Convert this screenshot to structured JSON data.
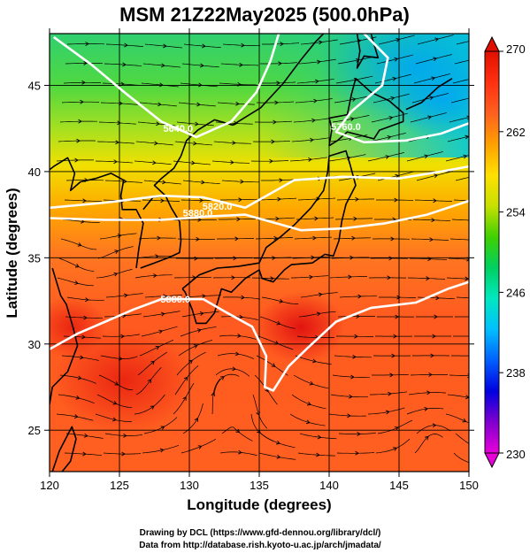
{
  "title": "MSM 21Z22May2025 (500.0hPa)",
  "xlabel": "Longitude (degrees)",
  "ylabel": "Latitude  (degrees)",
  "credits": [
    "Drawing by DCL (https://www.gfd-dennou.org/library/dcl/)",
    "Data from http://database.rish.kyoto-u.ac.jp/arch/jmadata/"
  ],
  "map": {
    "lon_range": [
      120,
      150
    ],
    "lat_range": [
      22.6,
      48
    ],
    "lon_ticks": [
      120,
      125,
      130,
      135,
      140,
      145,
      150
    ],
    "lat_ticks": [
      25,
      30,
      35,
      40,
      45
    ],
    "lon_tick_labels": [
      "120",
      "125",
      "130",
      "135",
      "140",
      "145",
      "150"
    ],
    "lat_tick_labels": [
      "25",
      "30",
      "35",
      "40",
      "45"
    ],
    "grid": true
  },
  "colorbar": {
    "range": [
      230,
      270
    ],
    "tick_values": [
      230,
      238,
      246,
      254,
      262,
      270
    ],
    "tick_labels": [
      "230",
      "238",
      "246",
      "254",
      "262",
      "270"
    ],
    "colors": [
      "#e800d8",
      "#8000d0",
      "#0000e0",
      "#0060ff",
      "#00c0ff",
      "#00e8c0",
      "#00d060",
      "#40d000",
      "#c8e000",
      "#ffe000",
      "#ffa000",
      "#ff6020",
      "#ff3010",
      "#e01000"
    ]
  },
  "contours": [
    {
      "label": "5640.0",
      "label_lon": 129.2,
      "label_lat": 42.3,
      "path": [
        [
          120.3,
          47.8
        ],
        [
          123,
          46.2
        ],
        [
          125.5,
          44.5
        ],
        [
          128,
          42.9
        ],
        [
          130.5,
          42.0
        ],
        [
          133,
          42.9
        ],
        [
          134.8,
          44.6
        ],
        [
          135.8,
          46.4
        ],
        [
          136.4,
          48
        ]
      ]
    },
    {
      "label": "5760.0",
      "label_lon": 141.2,
      "label_lat": 42.4,
      "path": [
        [
          142.5,
          48
        ],
        [
          144.2,
          46.6
        ],
        [
          143.8,
          45.0
        ],
        [
          141.6,
          43.5
        ],
        [
          140.5,
          42.3
        ],
        [
          142.5,
          41.7
        ],
        [
          145.5,
          41.8
        ],
        [
          148,
          42.2
        ],
        [
          150,
          42.8
        ]
      ]
    },
    {
      "label": "5820.0",
      "label_lon": 132.0,
      "label_lat": 37.8,
      "path": [
        [
          120,
          37.9
        ],
        [
          124,
          38.2
        ],
        [
          128,
          38.6
        ],
        [
          131,
          38.5
        ],
        [
          134,
          37.9
        ],
        [
          137.5,
          39.5
        ],
        [
          141,
          39.7
        ],
        [
          145,
          39.6
        ],
        [
          148,
          40.0
        ],
        [
          150,
          40.3
        ]
      ]
    },
    {
      "label": "5880.0",
      "label_lon": 130.6,
      "label_lat": 37.4,
      "path": [
        [
          120,
          37.3
        ],
        [
          124,
          37.2
        ],
        [
          128,
          37.2
        ],
        [
          131.5,
          37.4
        ],
        [
          134,
          37.5
        ],
        [
          138,
          36.6
        ],
        [
          141,
          36.7
        ],
        [
          144,
          37.0
        ],
        [
          147,
          37.5
        ],
        [
          150,
          38.3
        ]
      ]
    },
    {
      "label": "5880.0",
      "label_lon": 129.0,
      "label_lat": 32.4,
      "path": [
        [
          120,
          29.7
        ],
        [
          122,
          30.6
        ],
        [
          124,
          31.3
        ],
        [
          126,
          32.0
        ],
        [
          128,
          32.6
        ],
        [
          131,
          32.6
        ],
        [
          132.5,
          31.9
        ],
        [
          134.5,
          31.0
        ],
        [
          135.5,
          29.3
        ],
        [
          135.4,
          27.5
        ],
        [
          136.0,
          27.3
        ],
        [
          137.1,
          28.7
        ],
        [
          138.5,
          29.8
        ],
        [
          140.5,
          31.3
        ],
        [
          143,
          32.1
        ],
        [
          146.2,
          32.4
        ],
        [
          148.5,
          33.2
        ],
        [
          150,
          33.6
        ]
      ]
    }
  ],
  "coast": [
    [
      [
        129.5,
        33.2
      ],
      [
        130.7,
        34.0
      ],
      [
        132,
        34.4
      ],
      [
        133.5,
        34.5
      ],
      [
        135,
        34.7
      ],
      [
        135.5,
        35.6
      ],
      [
        136.5,
        36.2
      ],
      [
        137.5,
        36.9
      ],
      [
        138.7,
        37.9
      ],
      [
        139.6,
        38.9
      ],
      [
        139.9,
        40.0
      ],
      [
        140.0,
        40.9
      ],
      [
        141.2,
        41.2
      ],
      [
        141.5,
        40.4
      ],
      [
        141.9,
        39.2
      ],
      [
        141.2,
        38.1
      ],
      [
        140.9,
        37.1
      ],
      [
        140.7,
        36.0
      ],
      [
        140.3,
        35.1
      ],
      [
        139.7,
        35.2
      ],
      [
        138.8,
        34.7
      ],
      [
        137.3,
        34.6
      ],
      [
        136.8,
        34.3
      ],
      [
        136.0,
        33.6
      ],
      [
        135.2,
        33.8
      ],
      [
        135.0,
        34.3
      ],
      [
        134.0,
        33.8
      ],
      [
        133.0,
        33.0
      ],
      [
        132.3,
        33.2
      ],
      [
        131.8,
        31.8
      ],
      [
        131.2,
        31.2
      ],
      [
        130.5,
        31.2
      ],
      [
        130.2,
        32.0
      ],
      [
        129.7,
        33.0
      ],
      [
        129.5,
        33.2
      ]
    ],
    [
      [
        140.0,
        41.5
      ],
      [
        140.2,
        42.5
      ],
      [
        140.0,
        43.1
      ],
      [
        141.3,
        43.3
      ],
      [
        141.6,
        44.5
      ],
      [
        141.9,
        45.4
      ],
      [
        143.0,
        44.6
      ],
      [
        144.3,
        44.1
      ],
      [
        145.3,
        43.4
      ],
      [
        145.3,
        42.9
      ],
      [
        143.6,
        42.4
      ],
      [
        143.2,
        41.9
      ],
      [
        141.3,
        42.3
      ],
      [
        140.6,
        41.8
      ],
      [
        140.0,
        41.5
      ]
    ],
    [
      [
        126.2,
        34.4
      ],
      [
        126.4,
        35.6
      ],
      [
        126.7,
        37.0
      ],
      [
        126.2,
        37.8
      ],
      [
        125.2,
        37.8
      ],
      [
        125.1,
        38.6
      ],
      [
        125.3,
        39.5
      ],
      [
        124.4,
        39.9
      ],
      [
        123.3,
        39.6
      ],
      [
        122.2,
        39.4
      ],
      [
        121.5,
        38.9
      ],
      [
        121.8,
        39.9
      ],
      [
        121.3,
        40.8
      ],
      [
        120.3,
        40.3
      ],
      [
        119.5,
        39.8
      ]
    ],
    [
      [
        126.7,
        37.8
      ],
      [
        127.4,
        38.5
      ],
      [
        128.3,
        38.6
      ],
      [
        128.7,
        37.9
      ],
      [
        129.3,
        37.1
      ],
      [
        129.4,
        36.0
      ],
      [
        129.3,
        35.3
      ],
      [
        128.5,
        35.0
      ],
      [
        127.5,
        34.7
      ],
      [
        126.5,
        34.4
      ]
    ],
    [
      [
        129.4,
        40.9
      ],
      [
        129.8,
        41.8
      ],
      [
        130.6,
        42.4
      ],
      [
        131.8,
        43.0
      ],
      [
        133.1,
        42.7
      ],
      [
        135.1,
        43.7
      ],
      [
        136.7,
        45.1
      ],
      [
        138.0,
        46.5
      ],
      [
        139.0,
        47.5
      ],
      [
        139.6,
        48.0
      ]
    ],
    [
      [
        129.4,
        40.9
      ],
      [
        128.9,
        40.2
      ],
      [
        128.0,
        39.6
      ],
      [
        127.5,
        39.2
      ],
      [
        128.3,
        38.6
      ]
    ],
    [
      [
        142.0,
        48.0
      ],
      [
        142.2,
        47.0
      ],
      [
        142.0,
        46.0
      ],
      [
        142.5,
        46.7
      ],
      [
        143.5,
        46.6
      ],
      [
        143.2,
        47.4
      ],
      [
        143.0,
        48.0
      ]
    ],
    [
      [
        145.5,
        43.6
      ],
      [
        146.6,
        44.0
      ],
      [
        147.8,
        44.9
      ],
      [
        148.8,
        45.4
      ]
    ],
    [
      [
        120.0,
        26.5
      ],
      [
        120.2,
        27.5
      ],
      [
        121.3,
        28.4
      ],
      [
        122.0,
        29.9
      ],
      [
        121.7,
        30.9
      ],
      [
        121.2,
        32.3
      ],
      [
        120.8,
        32.8
      ],
      [
        120.2,
        34.4
      ]
    ],
    [
      [
        120.2,
        22.6
      ],
      [
        120.7,
        23.8
      ],
      [
        121.6,
        25.2
      ],
      [
        121.9,
        24.5
      ],
      [
        121.5,
        23.2
      ],
      [
        120.9,
        22.6
      ]
    ]
  ]
}
